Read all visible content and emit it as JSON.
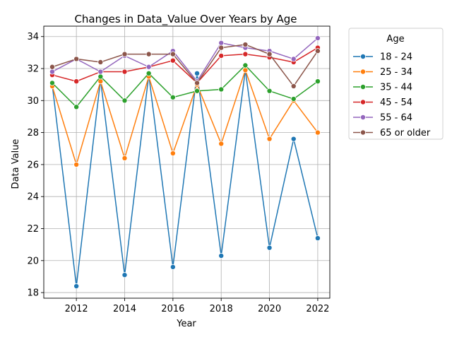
{
  "chart_data": {
    "type": "line",
    "title": "Changes in Data_Value Over Years by Age",
    "xlabel": "Year",
    "ylabel": "Data Value",
    "xlim": [
      2010.65,
      2022.5
    ],
    "ylim": [
      17.65,
      34.65
    ],
    "xticks": [
      2012,
      2014,
      2016,
      2018,
      2020,
      2022
    ],
    "yticks": [
      18,
      20,
      22,
      24,
      26,
      28,
      30,
      32,
      34
    ],
    "grid": true,
    "legend_title": "Age",
    "legend_position": "outside-right",
    "x": [
      2011,
      2012,
      2013,
      2014,
      2015,
      2016,
      2017,
      2018,
      2019,
      2020,
      2021,
      2022
    ],
    "series": [
      {
        "name": "18 - 24",
        "color": "#1f77b4",
        "values": [
          31.0,
          18.4,
          31.3,
          19.1,
          31.6,
          19.6,
          31.7,
          20.3,
          31.9,
          20.8,
          27.6,
          21.4
        ]
      },
      {
        "name": "25 - 34",
        "color": "#ff7f0e",
        "values": [
          30.9,
          26.0,
          31.2,
          26.4,
          31.5,
          26.7,
          31.0,
          27.3,
          31.9,
          27.6,
          30.0,
          28.0
        ]
      },
      {
        "name": "35 - 44",
        "color": "#2ca02c",
        "values": [
          31.1,
          29.6,
          31.5,
          30.0,
          31.7,
          30.2,
          30.6,
          30.7,
          32.2,
          30.6,
          30.1,
          31.2
        ]
      },
      {
        "name": "45 - 54",
        "color": "#d62728",
        "values": [
          31.6,
          31.2,
          31.8,
          31.8,
          32.1,
          32.5,
          31.1,
          32.8,
          32.9,
          32.7,
          32.4,
          33.3
        ]
      },
      {
        "name": "55 - 64",
        "color": "#9467bd",
        "values": [
          31.8,
          32.6,
          31.8,
          32.8,
          32.1,
          33.1,
          31.2,
          33.6,
          33.3,
          33.1,
          32.6,
          33.9
        ]
      },
      {
        "name": "65 or older",
        "color": "#8c564b",
        "values": [
          32.1,
          32.6,
          32.4,
          32.9,
          32.9,
          32.9,
          31.1,
          33.3,
          33.5,
          32.9,
          30.9,
          33.1
        ]
      }
    ]
  }
}
